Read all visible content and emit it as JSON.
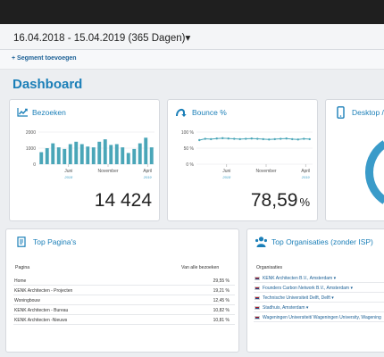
{
  "header": {
    "date_range": "16.04.2018 - 15.04.2019  (365 Dagen)",
    "caret": "▾",
    "segment_label": "+ Segment toevoegen"
  },
  "page": {
    "title": "Dashboard"
  },
  "cards": {
    "bezoeken": {
      "title": "Bezoeken",
      "icon": "line-chart-icon",
      "total": "14 424",
      "chart_data": {
        "type": "bar",
        "title": "",
        "xlabel": "",
        "ylabel": "",
        "ylim": [
          0,
          2000
        ],
        "y_ticks": [
          "2000",
          "1000",
          "0"
        ],
        "x_tick_labels": [
          "Juni",
          "November",
          "April"
        ],
        "x_year_labels": [
          "2018",
          "2019"
        ],
        "values": [
          750,
          1000,
          1300,
          1050,
          950,
          1250,
          1400,
          1250,
          1100,
          1050,
          1400,
          1550,
          1200,
          1250,
          1050,
          700,
          950,
          1300,
          1650,
          1050
        ],
        "color": "#4aa6b8"
      }
    },
    "bounce": {
      "title": "Bounce %",
      "icon": "bounce-arrow-icon",
      "total": "78,59",
      "unit": "%",
      "chart_data": {
        "type": "line",
        "title": "",
        "xlabel": "",
        "ylabel": "",
        "ylim": [
          0,
          100
        ],
        "y_ticks": [
          "100 %",
          "50 %",
          "0 %"
        ],
        "x_tick_labels": [
          "Juni",
          "November",
          "April"
        ],
        "x_year_labels": [
          "2018",
          "2019"
        ],
        "values": [
          75,
          79,
          78,
          80,
          81,
          80,
          79,
          78,
          79,
          80,
          79,
          78,
          77,
          78,
          79,
          80,
          78,
          77,
          79,
          78
        ],
        "color": "#4aa6b8"
      }
    },
    "desktop": {
      "title": "Desktop /",
      "icon": "mobile-phone-icon"
    },
    "top_paginas": {
      "title": "Top Pagina's",
      "icon": "document-icon",
      "col_page": "Pagina",
      "col_pct": "Van alle bezoeken",
      "rows": [
        {
          "page": "Home",
          "pct": "29,55 %"
        },
        {
          "page": "KENK Architecten - Projecten",
          "pct": "19,21 %"
        },
        {
          "page": "Woningbouw",
          "pct": "12,45 %"
        },
        {
          "page": "KENK Architecten - Bureau",
          "pct": "10,82 %"
        },
        {
          "page": "KENK Architecten -Nieuws",
          "pct": "10,81 %"
        }
      ]
    },
    "top_organisaties": {
      "title": "Top Organisaties (zonder ISP)",
      "icon": "people-icon",
      "col_org": "Organisaties",
      "rows": [
        {
          "org": "KENK Architecten B.V., Amsterdam ▾"
        },
        {
          "org": "Founders Carbon Network B.V., Amsterdam ▾"
        },
        {
          "org": "Technische Universiteit Delft, Delft ▾"
        },
        {
          "org": "Stadhuis, Amsterdam ▾"
        },
        {
          "org": "Wageningen Universiteit/ Wageningen University, Wagening"
        }
      ],
      "flag_colors": [
        "#ae1c28",
        "#ffffff",
        "#21468b"
      ]
    }
  }
}
